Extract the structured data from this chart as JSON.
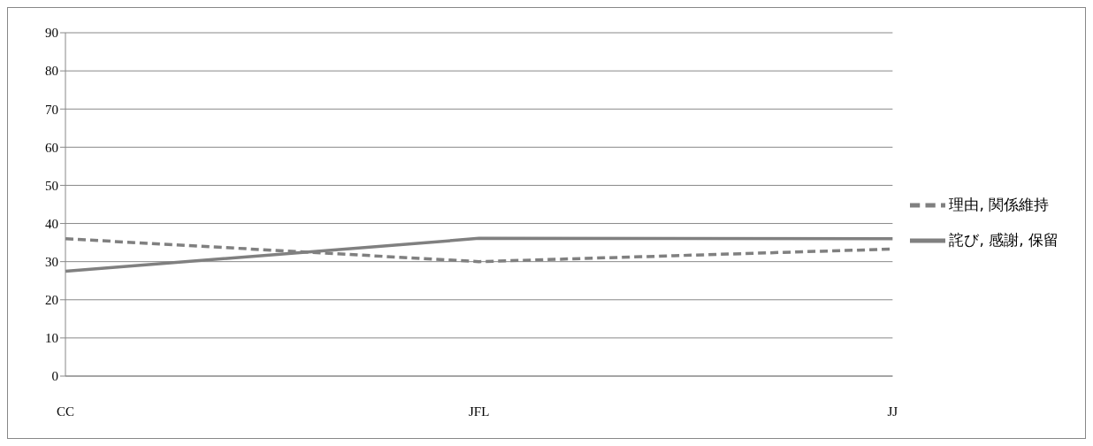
{
  "chart_data": {
    "type": "line",
    "categories": [
      "CC",
      "JFL",
      "JJ"
    ],
    "series": [
      {
        "name": "理由, 関係維持",
        "color": "#808080",
        "line_style": "dashed",
        "values": [
          36,
          30,
          33.3
        ]
      },
      {
        "name": "詫び, 感謝, 保留",
        "color": "#808080",
        "line_style": "solid",
        "values": [
          27.5,
          36.1,
          36
        ]
      }
    ],
    "ylim": [
      0,
      90
    ],
    "yticks": [
      0,
      10,
      20,
      30,
      40,
      50,
      60,
      70,
      80,
      90
    ],
    "grid": "y",
    "legend": "right",
    "marker": "none"
  }
}
